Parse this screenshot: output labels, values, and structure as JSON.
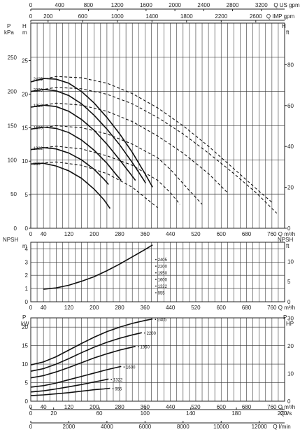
{
  "chart_data": [
    {
      "type": "line",
      "name_key": "head",
      "left_axis": {
        "unit_top": "P",
        "unit_bottom": "kPa",
        "label2": "H",
        "label2_unit": "m",
        "ylim": [
          0,
          250
        ],
        "ticks": [
          0,
          50,
          100,
          150,
          200,
          250
        ],
        "m_ticks": [
          0,
          5,
          10,
          15,
          20,
          25
        ]
      },
      "right_axis": {
        "label": "H",
        "unit": "ft",
        "ticks": [
          0,
          20,
          40,
          60,
          80
        ]
      },
      "x_axis": {
        "label": "Q m³/h",
        "xlim": [
          0,
          800
        ],
        "ticks": [
          0,
          40,
          120,
          200,
          280,
          360,
          440,
          520,
          600,
          680,
          760
        ]
      },
      "top_axis_1": {
        "label": "Q US gpm",
        "ticks": [
          0,
          400,
          800,
          1200,
          1600,
          2000,
          2400,
          2800,
          3200
        ]
      },
      "top_axis_2": {
        "label": "Q IMP gpm",
        "ticks": [
          0,
          200,
          600,
          1000,
          1400,
          1800,
          2200,
          2600
        ]
      },
      "series": [
        {
          "name": "2405",
          "solid": [
            [
              0,
              214
            ],
            [
              40,
              219
            ],
            [
              80,
              218
            ],
            [
              120,
              212
            ],
            [
              160,
              200
            ],
            [
              200,
              183
            ],
            [
              240,
              162
            ],
            [
              280,
              138
            ],
            [
              320,
              111
            ],
            [
              360,
              80
            ],
            [
              384,
              60
            ]
          ],
          "dashed": [
            [
              384,
              60
            ],
            [
              0,
              214
            ]
          ]
        },
        {
          "name": "2200",
          "solid": [
            [
              0,
              200
            ],
            [
              40,
              203
            ],
            [
              80,
              201
            ],
            [
              120,
              194
            ],
            [
              160,
              182
            ],
            [
              200,
              165
            ],
            [
              240,
              145
            ],
            [
              280,
              122
            ],
            [
              320,
              96
            ],
            [
              350,
              75
            ],
            [
              362,
              66
            ]
          ]
        },
        {
          "name": "1950",
          "solid": [
            [
              0,
              177
            ],
            [
              40,
              180
            ],
            [
              80,
              178
            ],
            [
              120,
              171
            ],
            [
              160,
              159
            ],
            [
              200,
              143
            ],
            [
              240,
              123
            ],
            [
              280,
              100
            ],
            [
              310,
              82
            ],
            [
              330,
              70
            ]
          ]
        },
        {
          "name": "1600",
          "solid": [
            [
              0,
              145
            ],
            [
              40,
              148
            ],
            [
              80,
              146
            ],
            [
              120,
              140
            ],
            [
              160,
              129
            ],
            [
              200,
              114
            ],
            [
              240,
              95
            ],
            [
              270,
              78
            ],
            [
              285,
              70
            ]
          ]
        },
        {
          "name": "1322",
          "solid": [
            [
              0,
              115
            ],
            [
              40,
              118
            ],
            [
              80,
              116
            ],
            [
              120,
              110
            ],
            [
              160,
              100
            ],
            [
              200,
              86
            ],
            [
              230,
              72
            ],
            [
              245,
              64
            ]
          ]
        },
        {
          "name": "955",
          "solid": [
            [
              0,
              94
            ],
            [
              40,
              95
            ],
            [
              80,
              91
            ],
            [
              120,
              84
            ],
            [
              160,
              73
            ],
            [
              200,
              57
            ],
            [
              230,
              42
            ],
            [
              250,
              29
            ]
          ]
        }
      ],
      "dashed_curves": [
        [
          [
            0,
            214
          ],
          [
            80,
            222
          ],
          [
            160,
            220
          ],
          [
            240,
            212
          ],
          [
            320,
            197
          ],
          [
            400,
            176
          ],
          [
            480,
            150
          ],
          [
            560,
            120
          ],
          [
            640,
            87
          ],
          [
            720,
            54
          ],
          [
            760,
            38
          ]
        ],
        [
          [
            0,
            200
          ],
          [
            80,
            206
          ],
          [
            160,
            204
          ],
          [
            240,
            196
          ],
          [
            320,
            182
          ],
          [
            400,
            162
          ],
          [
            480,
            138
          ],
          [
            560,
            110
          ],
          [
            640,
            80
          ],
          [
            710,
            52
          ],
          [
            775,
            22
          ]
        ],
        [
          [
            0,
            177
          ],
          [
            80,
            183
          ],
          [
            160,
            180
          ],
          [
            240,
            171
          ],
          [
            320,
            156
          ],
          [
            400,
            135
          ],
          [
            480,
            110
          ],
          [
            560,
            80
          ],
          [
            620,
            52
          ]
        ],
        [
          [
            0,
            145
          ],
          [
            80,
            150
          ],
          [
            160,
            147
          ],
          [
            240,
            138
          ],
          [
            320,
            123
          ],
          [
            400,
            103
          ],
          [
            440,
            86
          ],
          [
            500,
            55
          ],
          [
            540,
            35
          ]
        ],
        [
          [
            0,
            115
          ],
          [
            80,
            120
          ],
          [
            160,
            116
          ],
          [
            240,
            106
          ],
          [
            320,
            92
          ],
          [
            400,
            70
          ],
          [
            440,
            52
          ],
          [
            470,
            35
          ]
        ],
        [
          [
            0,
            94
          ],
          [
            80,
            97
          ],
          [
            160,
            92
          ],
          [
            240,
            80
          ],
          [
            320,
            60
          ],
          [
            360,
            45
          ],
          [
            400,
            30
          ]
        ]
      ]
    },
    {
      "type": "line",
      "name_key": "npsh",
      "left_axis": {
        "label": "NPSH",
        "unit": "m",
        "ylim": [
          0,
          4.5
        ],
        "ticks": [
          0,
          1,
          2,
          3,
          4
        ]
      },
      "right_axis": {
        "label": "NPSH",
        "unit": "ft",
        "ticks": [
          0,
          5,
          10
        ]
      },
      "x_axis": {
        "label": "Q m³/h",
        "xlim": [
          0,
          800
        ],
        "ticks": [
          0,
          40,
          120,
          200,
          280,
          360,
          440,
          520,
          600,
          680,
          760
        ]
      },
      "curve": [
        [
          40,
          0.95
        ],
        [
          80,
          1.05
        ],
        [
          120,
          1.25
        ],
        [
          160,
          1.55
        ],
        [
          200,
          1.9
        ],
        [
          240,
          2.35
        ],
        [
          280,
          2.85
        ],
        [
          320,
          3.4
        ],
        [
          360,
          3.95
        ],
        [
          384,
          4.3
        ]
      ],
      "labels": [
        "2405",
        "2200",
        "1950",
        "1600",
        "1322",
        "955"
      ]
    },
    {
      "type": "line",
      "name_key": "power",
      "left_axis": {
        "label": "P",
        "unit": "kW",
        "ylim": [
          0,
          22.5
        ],
        "ticks": [
          0,
          5,
          10,
          15,
          20
        ]
      },
      "right_axis": {
        "label": "P",
        "unit": "HP",
        "ticks": [
          0,
          10,
          20,
          30
        ]
      },
      "x_axis": {
        "label": "Q m³/h",
        "xlim": [
          0,
          800
        ],
        "ticks": [
          0,
          40,
          120,
          200,
          280,
          360,
          440,
          520,
          600,
          680,
          760
        ]
      },
      "bottom_axis_1": {
        "label": "Q l/s",
        "ticks": [
          0,
          20,
          60,
          100,
          140,
          180,
          220
        ]
      },
      "bottom_axis_2": {
        "label": "Q l/min",
        "ticks": [
          0,
          2000,
          4000,
          6000,
          8000,
          10000,
          12000
        ]
      },
      "series": [
        {
          "name": "2405",
          "points": [
            [
              0,
              9.8
            ],
            [
              40,
              10.6
            ],
            [
              80,
              12
            ],
            [
              120,
              13.8
            ],
            [
              160,
              15.6
            ],
            [
              200,
              17.3
            ],
            [
              240,
              18.8
            ],
            [
              280,
              20
            ],
            [
              320,
              21
            ],
            [
              360,
              21.8
            ],
            [
              384,
              22.2
            ]
          ]
        },
        {
          "name": "2200",
          "points": [
            [
              0,
              8.1
            ],
            [
              40,
              8.8
            ],
            [
              80,
              10
            ],
            [
              120,
              11.5
            ],
            [
              160,
              13.1
            ],
            [
              200,
              14.6
            ],
            [
              240,
              15.9
            ],
            [
              280,
              17
            ],
            [
              320,
              17.9
            ],
            [
              350,
              18.5
            ]
          ]
        },
        {
          "name": "1950",
          "points": [
            [
              0,
              6.3
            ],
            [
              40,
              6.9
            ],
            [
              80,
              7.9
            ],
            [
              120,
              9.1
            ],
            [
              160,
              10.4
            ],
            [
              200,
              11.7
            ],
            [
              240,
              12.8
            ],
            [
              280,
              13.8
            ],
            [
              310,
              14.4
            ],
            [
              330,
              14.8
            ]
          ]
        },
        {
          "name": "1600",
          "points": [
            [
              0,
              3.8
            ],
            [
              40,
              4.2
            ],
            [
              80,
              4.9
            ],
            [
              120,
              5.8
            ],
            [
              160,
              6.7
            ],
            [
              200,
              7.6
            ],
            [
              240,
              8.5
            ],
            [
              270,
              9.1
            ],
            [
              285,
              9.4
            ]
          ]
        },
        {
          "name": "1322",
          "points": [
            [
              0,
              2.5
            ],
            [
              40,
              2.8
            ],
            [
              80,
              3.3
            ],
            [
              120,
              3.9
            ],
            [
              160,
              4.5
            ],
            [
              200,
              5.2
            ],
            [
              230,
              5.7
            ],
            [
              245,
              6
            ]
          ]
        },
        {
          "name": "955",
          "points": [
            [
              0,
              1.5
            ],
            [
              40,
              1.7
            ],
            [
              80,
              2
            ],
            [
              120,
              2.3
            ],
            [
              160,
              2.7
            ],
            [
              200,
              3.1
            ],
            [
              230,
              3.3
            ],
            [
              250,
              3.5
            ]
          ]
        }
      ]
    }
  ]
}
